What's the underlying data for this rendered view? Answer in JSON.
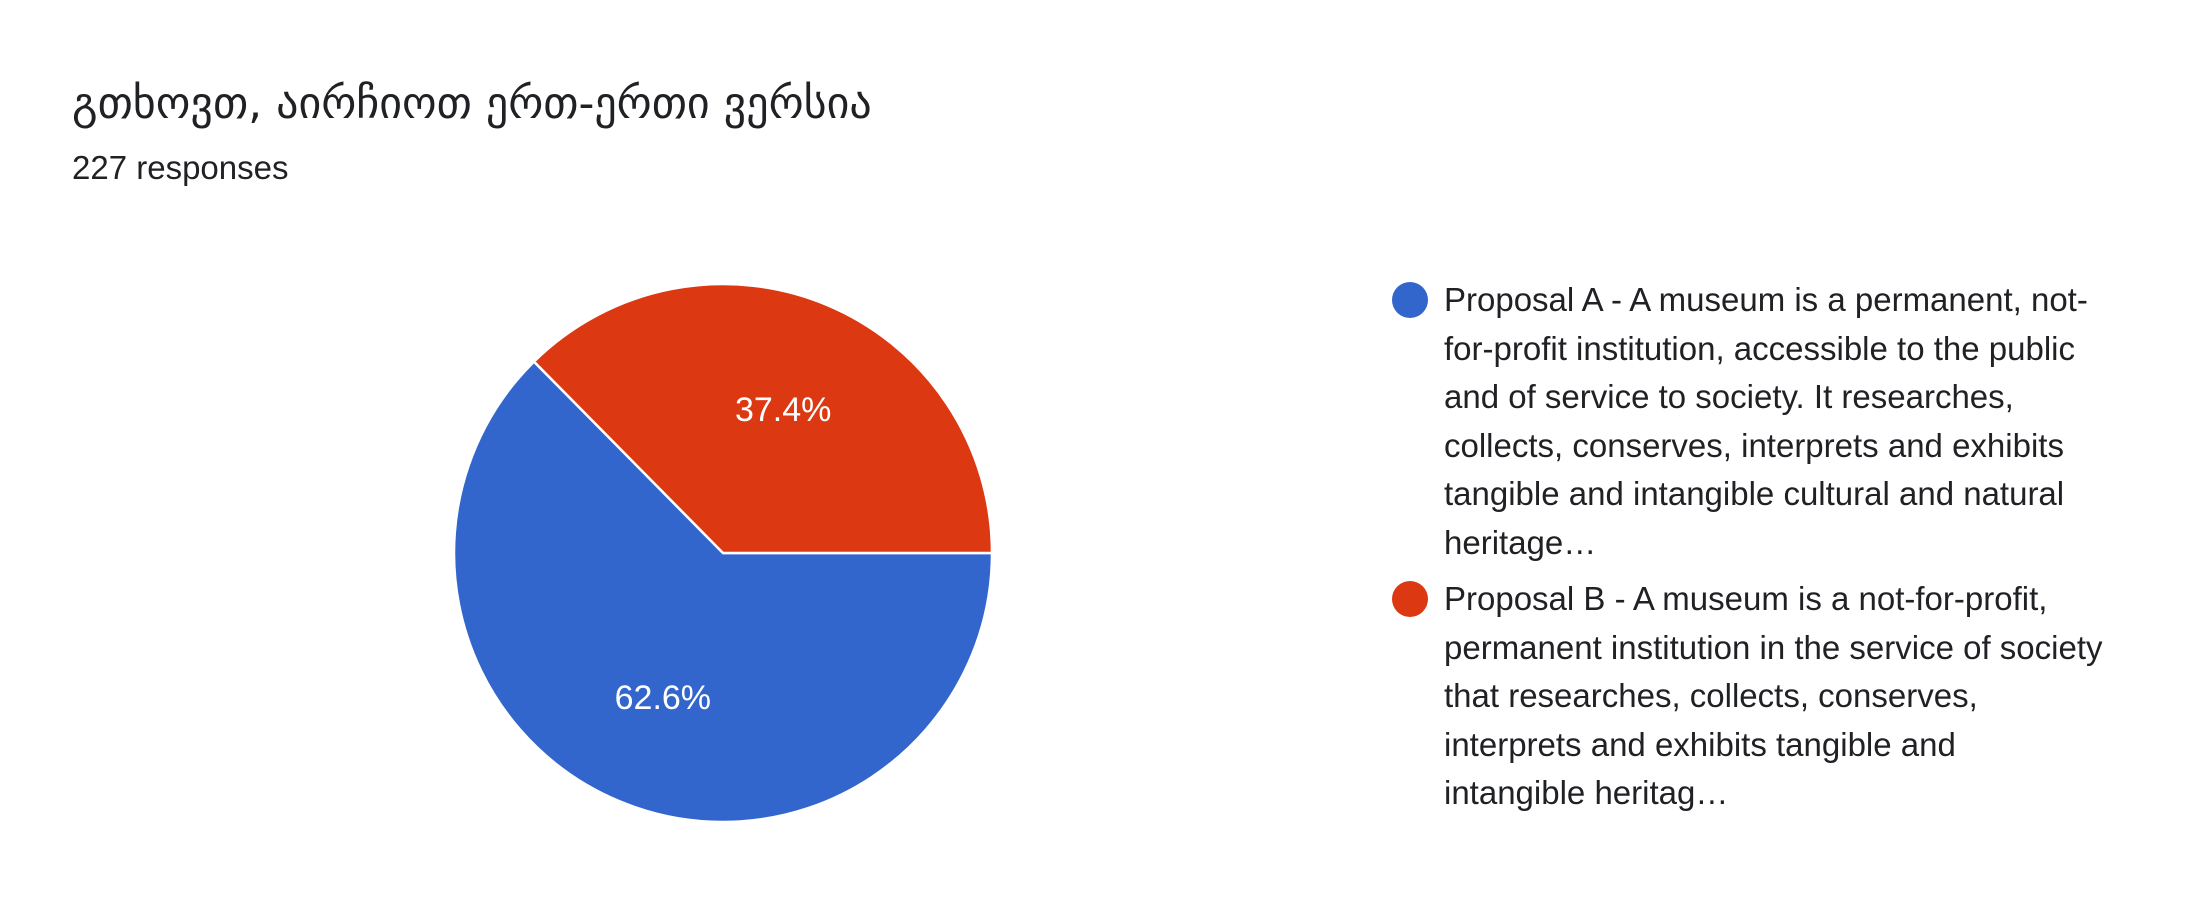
{
  "card": {
    "title": "გთხოვთ, აირჩიოთ ერთ-ერთი ვერსია",
    "subtitle": "227 responses"
  },
  "chart_data": {
    "type": "pie",
    "title": "გთხოვთ, აირჩიოთ ერთ-ერთი ვერსია",
    "total_responses": 227,
    "slices": [
      {
        "name": "Proposal A - A museum is a permanent, not-for-profit institution, accessible to the public and of service to society. It researches, collects, conserves, interprets and exhibits tangible and intangible cultural and natural heritage…",
        "value": 62.6,
        "label": "62.6%",
        "color": "#3366cc"
      },
      {
        "name": "Proposal B - A museum is a not-for-profit, permanent institution in the service of society that researches, collects, conserves, interprets and exhibits tangible and intangible heritag…",
        "value": 37.4,
        "label": "37.4%",
        "color": "#dc3912"
      }
    ],
    "legend_position": "right",
    "label_color": "#ffffff",
    "slice_border_color": "#ffffff"
  }
}
